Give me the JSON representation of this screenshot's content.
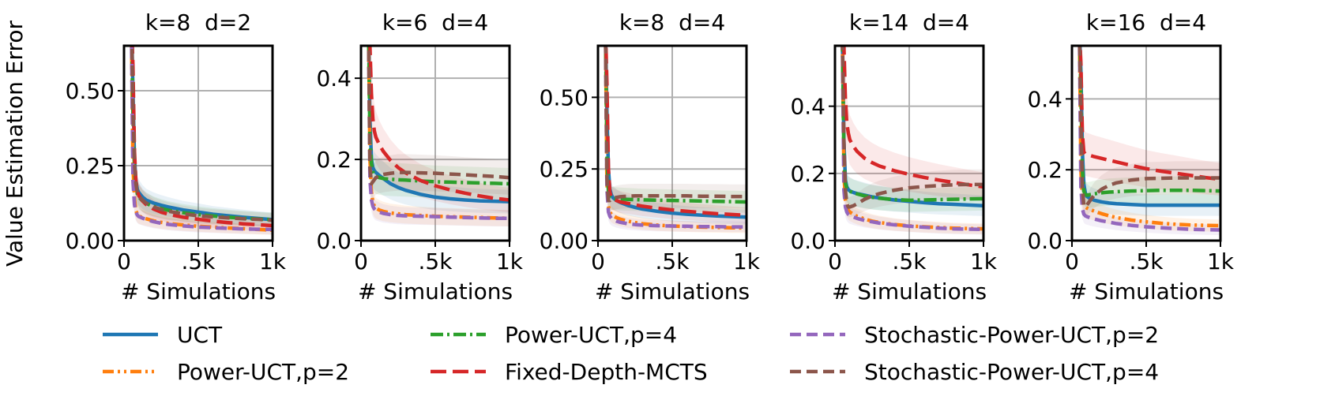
{
  "chart_data": {
    "type": "line",
    "ylabel": "Value Estimation Error",
    "xlabel": "# Simulations",
    "x_ticks": [
      "0",
      ".5k",
      "1k"
    ],
    "xlim": [
      0,
      1000
    ],
    "grid": true,
    "legend_position": "bottom",
    "legend_columns": 3,
    "series_styles": [
      {
        "name": "UCT",
        "color": "#1f77b4",
        "dash": "solid"
      },
      {
        "name": "Power-UCT,p=2",
        "color": "#ff7f0e",
        "dash": "dashdotdot"
      },
      {
        "name": "Power-UCT,p=4",
        "color": "#2ca02c",
        "dash": "dashdot"
      },
      {
        "name": "Fixed-Depth-MCTS",
        "color": "#d62728",
        "dash": "longdash"
      },
      {
        "name": "Stochastic-Power-UCT,p=2",
        "color": "#9467bd",
        "dash": "dashed"
      },
      {
        "name": "Stochastic-Power-UCT,p=4",
        "color": "#8c564b",
        "dash": "dashed"
      }
    ],
    "x": [
      50,
      60,
      70,
      80,
      90,
      100,
      125,
      150,
      200,
      250,
      300,
      400,
      500,
      600,
      700,
      800,
      900,
      1000
    ],
    "panels": [
      {
        "title": "k=8  d=2",
        "ylim": [
          0,
          0.65
        ],
        "y_ticks": [
          "0.00",
          "0.25",
          "0.50"
        ],
        "y_tick_values": [
          0,
          0.25,
          0.5
        ],
        "series": [
          {
            "name": "UCT",
            "values": [
              0.75,
              0.5,
              0.28,
              0.2,
              0.17,
              0.16,
              0.145,
              0.135,
              0.125,
              0.118,
              0.112,
              0.102,
              0.095,
              0.088,
              0.083,
              0.078,
              0.074,
              0.07
            ]
          },
          {
            "name": "Power-UCT,p=2",
            "values": [
              0.7,
              0.25,
              0.14,
              0.1,
              0.088,
              0.082,
              0.077,
              0.073,
              0.066,
              0.061,
              0.057,
              0.052,
              0.048,
              0.045,
              0.042,
              0.04,
              0.037,
              0.035
            ]
          },
          {
            "name": "Power-UCT,p=4",
            "values": [
              0.75,
              0.42,
              0.24,
              0.18,
              0.155,
              0.145,
              0.132,
              0.124,
              0.114,
              0.107,
              0.101,
              0.093,
              0.087,
              0.082,
              0.078,
              0.075,
              0.072,
              0.07
            ]
          },
          {
            "name": "Fixed-Depth-MCTS",
            "values": [
              0.75,
              0.58,
              0.3,
              0.2,
              0.165,
              0.15,
              0.132,
              0.12,
              0.105,
              0.095,
              0.088,
              0.078,
              0.071,
              0.065,
              0.06,
              0.056,
              0.053,
              0.05
            ]
          },
          {
            "name": "Stochastic-Power-UCT,p=2",
            "values": [
              0.7,
              0.2,
              0.12,
              0.095,
              0.085,
              0.08,
              0.075,
              0.07,
              0.063,
              0.058,
              0.054,
              0.049,
              0.045,
              0.043,
              0.041,
              0.039,
              0.038,
              0.037
            ]
          },
          {
            "name": "Stochastic-Power-UCT,p=4",
            "values": [
              0.75,
              0.45,
              0.26,
              0.19,
              0.16,
              0.15,
              0.135,
              0.125,
              0.112,
              0.104,
              0.098,
              0.089,
              0.083,
              0.079,
              0.076,
              0.073,
              0.071,
              0.068
            ]
          }
        ]
      },
      {
        "title": "k=6  d=4",
        "ylim": [
          0,
          0.48
        ],
        "y_ticks": [
          "0.0",
          "0.2",
          "0.4"
        ],
        "y_tick_values": [
          0,
          0.2,
          0.4
        ],
        "series": [
          {
            "name": "UCT",
            "values": [
              0.55,
              0.3,
              0.2,
              0.18,
              0.172,
              0.168,
              0.16,
              0.153,
              0.14,
              0.131,
              0.124,
              0.114,
              0.107,
              0.103,
              0.1,
              0.098,
              0.097,
              0.096
            ]
          },
          {
            "name": "Power-UCT,p=2",
            "values": [
              0.55,
              0.2,
              0.12,
              0.095,
              0.085,
              0.08,
              0.075,
              0.072,
              0.068,
              0.066,
              0.064,
              0.062,
              0.06,
              0.059,
              0.058,
              0.057,
              0.056,
              0.055
            ]
          },
          {
            "name": "Power-UCT,p=4",
            "values": [
              0.55,
              0.25,
              0.19,
              0.17,
              0.162,
              0.158,
              0.155,
              0.153,
              0.151,
              0.15,
              0.149,
              0.147,
              0.145,
              0.144,
              0.143,
              0.142,
              0.141,
              0.14
            ]
          },
          {
            "name": "Fixed-Depth-MCTS",
            "values": [
              0.55,
              0.48,
              0.36,
              0.3,
              0.27,
              0.255,
              0.235,
              0.22,
              0.197,
              0.18,
              0.167,
              0.148,
              0.135,
              0.125,
              0.117,
              0.11,
              0.104,
              0.1
            ]
          },
          {
            "name": "Stochastic-Power-UCT,p=2",
            "values": [
              0.55,
              0.15,
              0.1,
              0.085,
              0.078,
              0.074,
              0.07,
              0.067,
              0.064,
              0.062,
              0.061,
              0.06,
              0.059,
              0.058,
              0.057,
              0.056,
              0.055,
              0.055
            ]
          },
          {
            "name": "Stochastic-Power-UCT,p=4",
            "values": [
              0.55,
              0.18,
              0.14,
              0.145,
              0.15,
              0.155,
              0.16,
              0.163,
              0.166,
              0.168,
              0.168,
              0.167,
              0.166,
              0.164,
              0.162,
              0.16,
              0.158,
              0.155
            ]
          }
        ]
      },
      {
        "title": "k=8  d=4",
        "ylim": [
          0,
          0.68
        ],
        "y_ticks": [
          "0.00",
          "0.25",
          "0.50"
        ],
        "y_tick_values": [
          0,
          0.25,
          0.5
        ],
        "series": [
          {
            "name": "UCT",
            "values": [
              0.75,
              0.45,
              0.25,
              0.18,
              0.16,
              0.15,
              0.14,
              0.133,
              0.123,
              0.116,
              0.11,
              0.102,
              0.096,
              0.092,
              0.089,
              0.086,
              0.084,
              0.082
            ]
          },
          {
            "name": "Power-UCT,p=2",
            "values": [
              0.75,
              0.2,
              0.12,
              0.1,
              0.092,
              0.087,
              0.08,
              0.075,
              0.068,
              0.063,
              0.059,
              0.054,
              0.051,
              0.049,
              0.047,
              0.046,
              0.045,
              0.044
            ]
          },
          {
            "name": "Power-UCT,p=4",
            "values": [
              0.75,
              0.3,
              0.17,
              0.15,
              0.148,
              0.147,
              0.146,
              0.145,
              0.144,
              0.143,
              0.142,
              0.141,
              0.14,
              0.139,
              0.138,
              0.137,
              0.136,
              0.135
            ]
          },
          {
            "name": "Fixed-Depth-MCTS",
            "values": [
              0.75,
              0.55,
              0.25,
              0.17,
              0.15,
              0.145,
              0.14,
              0.135,
              0.13,
              0.125,
              0.12,
              0.113,
              0.107,
              0.102,
              0.098,
              0.094,
              0.091,
              0.088
            ]
          },
          {
            "name": "Stochastic-Power-UCT,p=2",
            "values": [
              0.75,
              0.18,
              0.1,
              0.085,
              0.078,
              0.074,
              0.068,
              0.064,
              0.059,
              0.056,
              0.054,
              0.052,
              0.051,
              0.05,
              0.049,
              0.049,
              0.048,
              0.048
            ]
          },
          {
            "name": "Stochastic-Power-UCT,p=4",
            "values": [
              0.75,
              0.22,
              0.14,
              0.14,
              0.145,
              0.148,
              0.151,
              0.153,
              0.155,
              0.156,
              0.156,
              0.156,
              0.156,
              0.156,
              0.155,
              0.155,
              0.154,
              0.154
            ]
          }
        ]
      },
      {
        "title": "k=14  d=4",
        "ylim": [
          0,
          0.58
        ],
        "y_ticks": [
          "0.0",
          "0.2",
          "0.4"
        ],
        "y_tick_values": [
          0,
          0.2,
          0.4
        ],
        "series": [
          {
            "name": "UCT",
            "values": [
              0.6,
              0.3,
              0.18,
              0.16,
              0.152,
              0.148,
              0.143,
              0.14,
              0.135,
              0.13,
              0.127,
              0.121,
              0.117,
              0.113,
              0.11,
              0.108,
              0.106,
              0.104
            ]
          },
          {
            "name": "Power-UCT,p=2",
            "values": [
              0.6,
              0.2,
              0.12,
              0.1,
              0.09,
              0.085,
              0.078,
              0.072,
              0.064,
              0.058,
              0.054,
              0.048,
              0.044,
              0.041,
              0.039,
              0.037,
              0.036,
              0.035
            ]
          },
          {
            "name": "Power-UCT,p=4",
            "values": [
              0.6,
              0.25,
              0.17,
              0.155,
              0.15,
              0.147,
              0.142,
              0.139,
              0.133,
              0.129,
              0.126,
              0.122,
              0.12,
              0.121,
              0.122,
              0.123,
              0.124,
              0.125
            ]
          },
          {
            "name": "Fixed-Depth-MCTS",
            "values": [
              0.6,
              0.58,
              0.42,
              0.35,
              0.32,
              0.3,
              0.28,
              0.265,
              0.245,
              0.232,
              0.222,
              0.208,
              0.197,
              0.188,
              0.18,
              0.173,
              0.166,
              0.16
            ]
          },
          {
            "name": "Stochastic-Power-UCT,p=2",
            "values": [
              0.6,
              0.15,
              0.1,
              0.085,
              0.078,
              0.074,
              0.07,
              0.066,
              0.06,
              0.056,
              0.052,
              0.047,
              0.043,
              0.04,
              0.037,
              0.035,
              0.034,
              0.033
            ]
          },
          {
            "name": "Stochastic-Power-UCT,p=4",
            "values": [
              0.6,
              0.3,
              0.15,
              0.11,
              0.1,
              0.1,
              0.104,
              0.11,
              0.123,
              0.133,
              0.14,
              0.15,
              0.157,
              0.161,
              0.164,
              0.166,
              0.167,
              0.167
            ]
          }
        ]
      },
      {
        "title": "k=16  d=4",
        "ylim": [
          0,
          0.55
        ],
        "y_ticks": [
          "0.0",
          "0.2",
          "0.4"
        ],
        "y_tick_values": [
          0,
          0.2,
          0.4
        ],
        "series": [
          {
            "name": "UCT",
            "values": [
              0.6,
              0.48,
              0.25,
              0.16,
              0.135,
              0.125,
              0.118,
              0.114,
              0.109,
              0.106,
              0.104,
              0.102,
              0.1,
              0.1,
              0.1,
              0.1,
              0.1,
              0.1
            ]
          },
          {
            "name": "Power-UCT,p=2",
            "values": [
              0.6,
              0.2,
              0.12,
              0.1,
              0.095,
              0.092,
              0.087,
              0.083,
              0.076,
              0.07,
              0.065,
              0.058,
              0.053,
              0.049,
              0.046,
              0.044,
              0.043,
              0.042
            ]
          },
          {
            "name": "Power-UCT,p=4",
            "values": [
              0.6,
              0.42,
              0.2,
              0.14,
              0.13,
              0.128,
              0.13,
              0.132,
              0.135,
              0.137,
              0.138,
              0.14,
              0.141,
              0.142,
              0.142,
              0.142,
              0.141,
              0.14
            ]
          },
          {
            "name": "Fixed-Depth-MCTS",
            "values": [
              0.6,
              0.5,
              0.3,
              0.25,
              0.245,
              0.243,
              0.24,
              0.237,
              0.232,
              0.227,
              0.222,
              0.212,
              0.203,
              0.196,
              0.19,
              0.184,
              0.178,
              0.173
            ]
          },
          {
            "name": "Stochastic-Power-UCT,p=2",
            "values": [
              0.6,
              0.15,
              0.09,
              0.075,
              0.07,
              0.068,
              0.064,
              0.061,
              0.056,
              0.052,
              0.048,
              0.043,
              0.039,
              0.036,
              0.034,
              0.032,
              0.031,
              0.03
            ]
          },
          {
            "name": "Stochastic-Power-UCT,p=4",
            "values": [
              0.6,
              0.35,
              0.15,
              0.1,
              0.095,
              0.1,
              0.115,
              0.128,
              0.145,
              0.156,
              0.163,
              0.171,
              0.175,
              0.176,
              0.177,
              0.177,
              0.177,
              0.177
            ]
          }
        ]
      }
    ]
  }
}
